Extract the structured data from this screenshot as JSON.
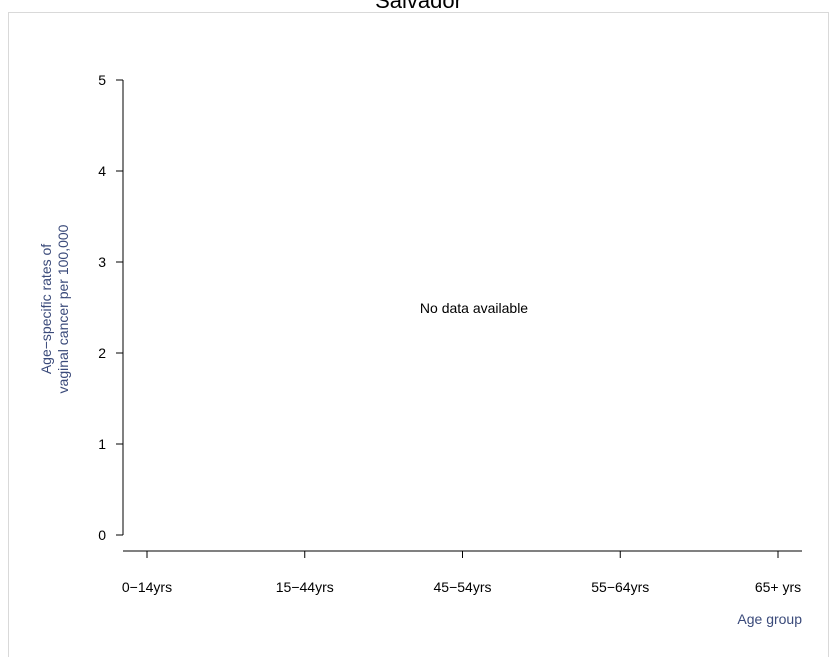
{
  "chart_data": {
    "type": "line",
    "title": "Salvador",
    "xlabel": "Age group",
    "ylabel_lines": [
      "Age−specific rates of",
      "vaginal cancer per 100,000"
    ],
    "categories": [
      "0−14yrs",
      "15−44yrs",
      "45−54yrs",
      "55−64yrs",
      "65+ yrs"
    ],
    "y_ticks": [
      "0",
      "1",
      "2",
      "3",
      "4",
      "5"
    ],
    "ylim": [
      0,
      5
    ],
    "grid": false,
    "series": [],
    "annotation": "No data available",
    "colors": {
      "axis_title": "#3a4a7a",
      "axis": "#000000",
      "frame": "#d9d9d9"
    }
  }
}
